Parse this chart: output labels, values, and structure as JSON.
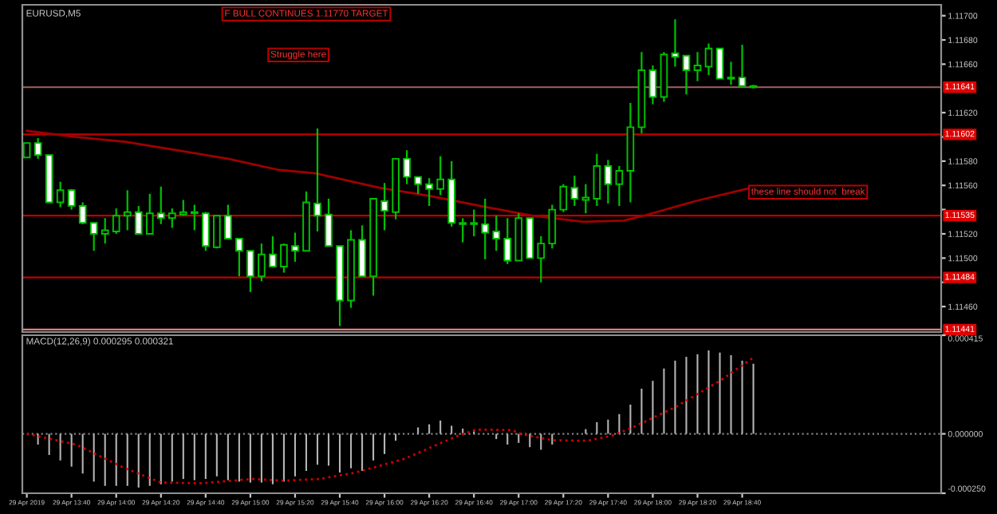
{
  "chart_data": [
    {
      "type": "candlestick",
      "title": "EURUSD,M5",
      "tick_labels": "y",
      "grid": false,
      "x": [
        "2019-04-29T13:20",
        "2019-04-29T13:25",
        "2019-04-29T13:30",
        "2019-04-29T13:35",
        "2019-04-29T13:40",
        "2019-04-29T13:45",
        "2019-04-29T13:50",
        "2019-04-29T13:55",
        "2019-04-29T14:00",
        "2019-04-29T14:05",
        "2019-04-29T14:10",
        "2019-04-29T14:15",
        "2019-04-29T14:20",
        "2019-04-29T14:25",
        "2019-04-29T14:30",
        "2019-04-29T14:35",
        "2019-04-29T14:40",
        "2019-04-29T14:45",
        "2019-04-29T14:50",
        "2019-04-29T14:55",
        "2019-04-29T15:00",
        "2019-04-29T15:05",
        "2019-04-29T15:10",
        "2019-04-29T15:15",
        "2019-04-29T15:20",
        "2019-04-29T15:25",
        "2019-04-29T15:30",
        "2019-04-29T15:35",
        "2019-04-29T15:40",
        "2019-04-29T15:45",
        "2019-04-29T15:50",
        "2019-04-29T15:55",
        "2019-04-29T16:00",
        "2019-04-29T16:05",
        "2019-04-29T16:10",
        "2019-04-29T16:15",
        "2019-04-29T16:20",
        "2019-04-29T16:25",
        "2019-04-29T16:30",
        "2019-04-29T16:35",
        "2019-04-29T16:40",
        "2019-04-29T16:45",
        "2019-04-29T16:50",
        "2019-04-29T16:55",
        "2019-04-29T17:00",
        "2019-04-29T17:05",
        "2019-04-29T17:10",
        "2019-04-29T17:15",
        "2019-04-29T17:20",
        "2019-04-29T17:25",
        "2019-04-29T17:30",
        "2019-04-29T17:35",
        "2019-04-29T17:40",
        "2019-04-29T17:45",
        "2019-04-29T17:50",
        "2019-04-29T17:55",
        "2019-04-29T18:00",
        "2019-04-29T18:05",
        "2019-04-29T18:10",
        "2019-04-29T18:15",
        "2019-04-29T18:20",
        "2019-04-29T18:25",
        "2019-04-29T18:30",
        "2019-04-29T18:35",
        "2019-04-29T18:40",
        "2019-04-29T18:45"
      ],
      "ohlc": [
        [
          1.11583,
          1.11595,
          1.11583,
          1.11595
        ],
        [
          1.11595,
          1.11599,
          1.11582,
          1.11585
        ],
        [
          1.11585,
          1.11585,
          1.11546,
          1.11546
        ],
        [
          1.11546,
          1.11563,
          1.11542,
          1.11556
        ],
        [
          1.11556,
          1.11557,
          1.1154,
          1.11543
        ],
        [
          1.11543,
          1.11546,
          1.11528,
          1.11529
        ],
        [
          1.11529,
          1.11529,
          1.11506,
          1.1152
        ],
        [
          1.1152,
          1.11533,
          1.11512,
          1.11523
        ],
        [
          1.11522,
          1.11541,
          1.1152,
          1.11535
        ],
        [
          1.11535,
          1.11556,
          1.11523,
          1.11538
        ],
        [
          1.11538,
          1.11543,
          1.1152,
          1.1152
        ],
        [
          1.1152,
          1.11553,
          1.1152,
          1.11537
        ],
        [
          1.11537,
          1.11559,
          1.11528,
          1.11533
        ],
        [
          1.11533,
          1.11541,
          1.11525,
          1.11537
        ],
        [
          1.11536,
          1.11548,
          1.11535,
          1.11538
        ],
        [
          1.11537,
          1.11544,
          1.11523,
          1.11538
        ],
        [
          1.11537,
          1.11538,
          1.11506,
          1.1151
        ],
        [
          1.11509,
          1.11535,
          1.11508,
          1.11535
        ],
        [
          1.11535,
          1.11544,
          1.11516,
          1.11516
        ],
        [
          1.11516,
          1.11516,
          1.11485,
          1.11506
        ],
        [
          1.11506,
          1.11506,
          1.11472,
          1.11485
        ],
        [
          1.11485,
          1.11512,
          1.11481,
          1.11503
        ],
        [
          1.11503,
          1.11518,
          1.11493,
          1.11493
        ],
        [
          1.11493,
          1.11512,
          1.11488,
          1.11511
        ],
        [
          1.1151,
          1.11521,
          1.11497,
          1.11506
        ],
        [
          1.11506,
          1.11555,
          1.11506,
          1.11546
        ],
        [
          1.11545,
          1.11607,
          1.11522,
          1.11535
        ],
        [
          1.11536,
          1.11549,
          1.1151,
          1.1151
        ],
        [
          1.1151,
          1.1151,
          1.11444,
          1.11465
        ],
        [
          1.11465,
          1.11523,
          1.11459,
          1.11515
        ],
        [
          1.11515,
          1.11527,
          1.11485,
          1.11485
        ],
        [
          1.11485,
          1.11549,
          1.11469,
          1.11549
        ],
        [
          1.11547,
          1.11562,
          1.11523,
          1.11539
        ],
        [
          1.11538,
          1.11582,
          1.11532,
          1.11582
        ],
        [
          1.11582,
          1.11589,
          1.11561,
          1.11567
        ],
        [
          1.11567,
          1.11567,
          1.11553,
          1.11561
        ],
        [
          1.11561,
          1.11566,
          1.11543,
          1.11557
        ],
        [
          1.11557,
          1.11584,
          1.11552,
          1.11565
        ],
        [
          1.11565,
          1.1158,
          1.11526,
          1.11529
        ],
        [
          1.11528,
          1.11533,
          1.11513,
          1.11529
        ],
        [
          1.11528,
          1.1154,
          1.11518,
          1.11529
        ],
        [
          1.11528,
          1.11549,
          1.11499,
          1.11521
        ],
        [
          1.11522,
          1.11535,
          1.11506,
          1.11516
        ],
        [
          1.11516,
          1.11533,
          1.11495,
          1.11498
        ],
        [
          1.11498,
          1.11537,
          1.11498,
          1.11533
        ],
        [
          1.11533,
          1.11533,
          1.115,
          1.115
        ],
        [
          1.115,
          1.11518,
          1.1148,
          1.11512
        ],
        [
          1.11512,
          1.11544,
          1.11508,
          1.1154
        ],
        [
          1.1154,
          1.11561,
          1.11538,
          1.11559
        ],
        [
          1.11558,
          1.11568,
          1.11543,
          1.11549
        ],
        [
          1.11548,
          1.11561,
          1.11537,
          1.1155
        ],
        [
          1.11549,
          1.11586,
          1.11543,
          1.11576
        ],
        [
          1.11576,
          1.11581,
          1.11545,
          1.11561
        ],
        [
          1.11561,
          1.11576,
          1.11543,
          1.11572
        ],
        [
          1.11572,
          1.11628,
          1.11546,
          1.11608
        ],
        [
          1.11608,
          1.1167,
          1.11603,
          1.11655
        ],
        [
          1.11655,
          1.11659,
          1.11627,
          1.11633
        ],
        [
          1.11633,
          1.1167,
          1.11629,
          1.11668
        ],
        [
          1.11669,
          1.11697,
          1.11658,
          1.11666
        ],
        [
          1.11667,
          1.11667,
          1.11635,
          1.11655
        ],
        [
          1.11655,
          1.1167,
          1.11646,
          1.11659
        ],
        [
          1.11658,
          1.11677,
          1.11651,
          1.11673
        ],
        [
          1.11673,
          1.11673,
          1.11648,
          1.11648
        ],
        [
          1.11648,
          1.11662,
          1.11643,
          1.11649
        ],
        [
          1.11649,
          1.11676,
          1.11642,
          1.11642
        ],
        [
          1.11641,
          1.11643,
          1.1164,
          1.11642
        ]
      ],
      "series": [
        {
          "type": "line",
          "color": "#a00000",
          "x": [
            "2019-04-29T13:20",
            "2019-04-29T13:42",
            "2019-04-29T14:04",
            "2019-04-29T14:27",
            "2019-04-29T14:50",
            "2019-04-29T15:12",
            "2019-04-29T15:29",
            "2019-04-29T15:58",
            "2019-04-29T16:21",
            "2019-04-29T16:43",
            "2019-04-29T17:06",
            "2019-04-29T17:29",
            "2019-04-29T17:47",
            "2019-04-29T17:56",
            "2019-04-29T18:19",
            "2019-04-29T18:44"
          ],
          "values": [
            1.11605,
            1.116,
            1.11596,
            1.11589,
            1.11582,
            1.11573,
            1.1157,
            1.11558,
            1.11551,
            1.11543,
            1.11535,
            1.1153,
            1.11531,
            1.11535,
            1.11547,
            1.11558
          ]
        }
      ],
      "xlim": [
        "2019-04-29T13:18",
        "2019-04-29T20:09"
      ],
      "ylim": [
        1.11439,
        1.11709
      ],
      "yticks": [
        {
          "value": 1.117,
          "label": "1.11700"
        },
        {
          "value": 1.1168,
          "label": "1.11680"
        },
        {
          "value": 1.1166,
          "label": "1.11660"
        },
        {
          "value": 1.1162,
          "label": "1.11620"
        },
        {
          "value": 1.116,
          "label": null
        },
        {
          "value": 1.1158,
          "label": "1.11580"
        },
        {
          "value": 1.1156,
          "label": "1.11560"
        },
        {
          "value": 1.1154,
          "label": null
        },
        {
          "value": 1.1152,
          "label": "1.11520"
        },
        {
          "value": 1.115,
          "label": "1.11500"
        },
        {
          "value": 1.1148,
          "label": null
        },
        {
          "value": 1.1146,
          "label": "1.11460"
        }
      ],
      "ref_lines": [
        {
          "axis": "y",
          "value": 1.11641,
          "label": "1.11641",
          "color": "#a06060"
        },
        {
          "axis": "y",
          "value": 1.11602,
          "label": "1.11602",
          "color": "#c00000"
        },
        {
          "axis": "y",
          "value": 1.11535,
          "label": "1.11535",
          "color": "#c00000"
        },
        {
          "axis": "y",
          "value": 1.11484,
          "label": "1.11484",
          "color": "#c00000"
        },
        {
          "axis": "y",
          "value": 1.11441,
          "label": "1.11441",
          "color": "#e08080"
        }
      ],
      "annotations": [
        "F BULL CONTINUES 1.11770 TARGET",
        "Struggle here",
        {
          "text": "these line should not  break",
          "x": "2019-04-29T18:44",
          "y": 1.11558
        }
      ]
    },
    {
      "type": "bar",
      "title": "MACD(12,26,9) 0.000295 0.000321",
      "grid": false,
      "x": [
        "2019-04-29T13:20",
        "2019-04-29T13:25",
        "2019-04-29T13:30",
        "2019-04-29T13:35",
        "2019-04-29T13:40",
        "2019-04-29T13:45",
        "2019-04-29T13:50",
        "2019-04-29T13:55",
        "2019-04-29T14:00",
        "2019-04-29T14:05",
        "2019-04-29T14:10",
        "2019-04-29T14:15",
        "2019-04-29T14:20",
        "2019-04-29T14:25",
        "2019-04-29T14:30",
        "2019-04-29T14:35",
        "2019-04-29T14:40",
        "2019-04-29T14:45",
        "2019-04-29T14:50",
        "2019-04-29T14:55",
        "2019-04-29T15:00",
        "2019-04-29T15:05",
        "2019-04-29T15:10",
        "2019-04-29T15:15",
        "2019-04-29T15:20",
        "2019-04-29T15:25",
        "2019-04-29T15:30",
        "2019-04-29T15:35",
        "2019-04-29T15:40",
        "2019-04-29T15:45",
        "2019-04-29T15:50",
        "2019-04-29T15:55",
        "2019-04-29T16:00",
        "2019-04-29T16:05",
        "2019-04-29T16:10",
        "2019-04-29T16:15",
        "2019-04-29T16:20",
        "2019-04-29T16:25",
        "2019-04-29T16:30",
        "2019-04-29T16:35",
        "2019-04-29T16:40",
        "2019-04-29T16:45",
        "2019-04-29T16:50",
        "2019-04-29T16:55",
        "2019-04-29T17:00",
        "2019-04-29T17:05",
        "2019-04-29T17:10",
        "2019-04-29T17:15",
        "2019-04-29T17:20",
        "2019-04-29T17:25",
        "2019-04-29T17:30",
        "2019-04-29T17:35",
        "2019-04-29T17:40",
        "2019-04-29T17:45",
        "2019-04-29T17:50",
        "2019-04-29T17:55",
        "2019-04-29T18:00",
        "2019-04-29T18:05",
        "2019-04-29T18:10",
        "2019-04-29T18:15",
        "2019-04-29T18:20",
        "2019-04-29T18:25",
        "2019-04-29T18:30",
        "2019-04-29T18:35",
        "2019-04-29T18:40",
        "2019-04-29T18:45"
      ],
      "series": [
        {
          "type": "bar",
          "color": "#b4b4b4",
          "values": [
            0,
            -4.5e-05,
            -8.9e-05,
            -0.000112,
            -0.000138,
            -0.000167,
            -0.000201,
            -0.000219,
            -0.000219,
            -0.000219,
            -0.000226,
            -0.000219,
            -0.000212,
            -0.000201,
            -0.00019,
            -0.000195,
            -0.00019,
            -0.000179,
            -0.000195,
            -0.000201,
            -0.000205,
            -0.000205,
            -0.000212,
            -0.000201,
            -0.000179,
            -0.000156,
            -0.00013,
            -0.000134,
            -0.000163,
            -0.000145,
            -0.000156,
            -0.000112,
            -8.5e-05,
            -2.9e-05,
            null,
            2.7e-05,
            4e-05,
            5.6e-05,
            3.4e-05,
            2.2e-05,
            1.1e-05,
            0,
            -2.2e-05,
            -4.5e-05,
            -3.8e-05,
            -5.6e-05,
            -6.7e-05,
            -4.5e-05,
            null,
            null,
            2e-05,
            4.9e-05,
            6e-05,
            8.3e-05,
            0.000123,
            0.00019,
            0.000223,
            0.000275,
            0.000308,
            0.000324,
            0.000335,
            0.000351,
            0.000342,
            0.000331,
            0.000308,
            0.000295
          ]
        },
        {
          "type": "line",
          "color": "#d00000",
          "line_style": "dotted",
          "x": [
            "2019-04-29T13:20",
            "2019-04-29T13:42",
            "2019-04-29T14:04",
            "2019-04-29T14:20",
            "2019-04-29T14:38",
            "2019-04-29T15:01",
            "2019-04-29T15:15",
            "2019-04-29T15:31",
            "2019-04-29T15:47",
            "2019-04-29T16:09",
            "2019-04-29T16:32",
            "2019-04-29T16:41",
            "2019-04-29T16:57",
            "2019-04-29T17:01",
            "2019-04-29T17:15",
            "2019-04-29T17:31",
            "2019-04-29T17:42",
            "2019-04-29T17:51",
            "2019-04-29T18:10",
            "2019-04-29T18:30",
            "2019-04-29T18:45"
          ],
          "values": [
            0,
            -4.5e-05,
            -0.000145,
            -0.000205,
            -0.000208,
            -0.00019,
            -0.000197,
            -0.00019,
            -0.000163,
            -0.000105,
            -1.1e-05,
            1.8e-05,
            1.6e-05,
            0,
            -2.7e-05,
            -2.9e-05,
            -7e-06,
            2.7e-05,
            0.000112,
            0.000223,
            0.000321
          ]
        }
      ],
      "xlim": [
        "2019-04-29T13:18",
        "2019-04-29T20:09"
      ],
      "xticks": [
        {
          "value": "2019-04-29T13:20",
          "label": "29 Apr 2019"
        },
        {
          "value": "2019-04-29T13:40",
          "label": "29 Apr 13:40"
        },
        {
          "value": "2019-04-29T14:00",
          "label": "29 Apr 14:00"
        },
        {
          "value": "2019-04-29T14:20",
          "label": "29 Apr 14:20"
        },
        {
          "value": "2019-04-29T14:40",
          "label": "29 Apr 14:40"
        },
        {
          "value": "2019-04-29T15:00",
          "label": "29 Apr 15:00"
        },
        {
          "value": "2019-04-29T15:20",
          "label": "29 Apr 15:20"
        },
        {
          "value": "2019-04-29T15:40",
          "label": "29 Apr 15:40"
        },
        {
          "value": "2019-04-29T16:00",
          "label": "29 Apr 16:00"
        },
        {
          "value": "2019-04-29T16:20",
          "label": "29 Apr 16:20"
        },
        {
          "value": "2019-04-29T16:40",
          "label": "29 Apr 16:40"
        },
        {
          "value": "2019-04-29T17:00",
          "label": "29 Apr 17:00"
        },
        {
          "value": "2019-04-29T17:20",
          "label": "29 Apr 17:20"
        },
        {
          "value": "2019-04-29T17:40",
          "label": "29 Apr 17:40"
        },
        {
          "value": "2019-04-29T18:00",
          "label": "29 Apr 18:00"
        },
        {
          "value": "2019-04-29T18:20",
          "label": "29 Apr 18:20"
        },
        {
          "value": "2019-04-29T18:40",
          "label": "29 Apr 18:40"
        }
      ],
      "ylim": [
        -0.00025,
        0.000415
      ],
      "yticks": [
        {
          "value": 0.000415,
          "label": "0.000415"
        },
        {
          "value": 0,
          "label": "0.000000"
        },
        {
          "value": -0.00025,
          "label": "-0.000250"
        }
      ],
      "ref_lines": [
        {
          "axis": "y",
          "value": 0,
          "color": "#808080",
          "line_style": "dotted"
        }
      ]
    }
  ]
}
